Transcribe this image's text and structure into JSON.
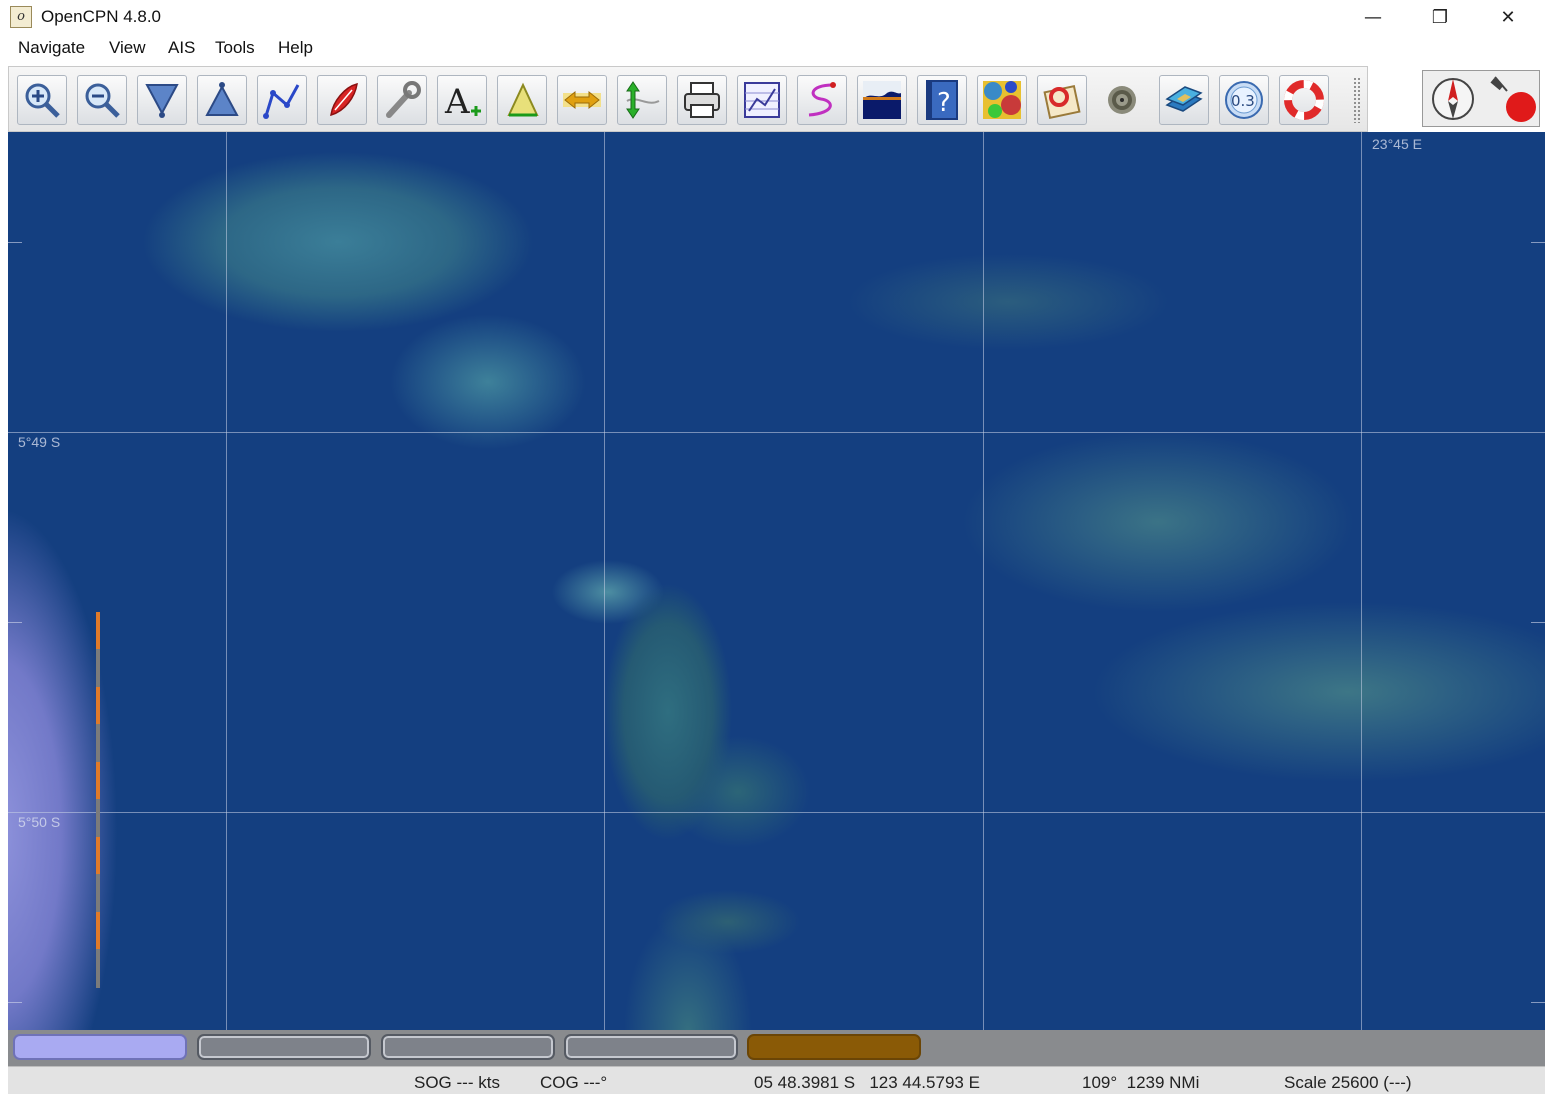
{
  "window": {
    "title": "OpenCPN 4.8.0",
    "app_icon_glyph": "o",
    "controls": {
      "minimize": "—",
      "restore": "❐",
      "close": "✕"
    }
  },
  "menu": {
    "items": [
      "Navigate",
      "View",
      "AIS",
      "Tools",
      "Help"
    ]
  },
  "toolbar": {
    "buttons": [
      {
        "icon": "zoom-in-icon"
      },
      {
        "icon": "zoom-out-icon"
      },
      {
        "icon": "scale-down-icon"
      },
      {
        "icon": "scale-up-icon"
      },
      {
        "icon": "route-icon"
      },
      {
        "icon": "boat-follow-icon"
      },
      {
        "icon": "settings-icon"
      },
      {
        "icon": "text-icon"
      },
      {
        "icon": "measure-icon"
      },
      {
        "icon": "tide-icon"
      },
      {
        "icon": "current-icon"
      },
      {
        "icon": "print-icon"
      },
      {
        "icon": "route-manager-icon"
      },
      {
        "icon": "track-icon"
      },
      {
        "icon": "color-scheme-icon"
      },
      {
        "icon": "help-icon"
      },
      {
        "icon": "grib-icon"
      },
      {
        "icon": "logbook-icon"
      },
      {
        "icon": "radar-icon"
      },
      {
        "icon": "chart-dl-icon"
      },
      {
        "icon": "dashboard-icon"
      },
      {
        "icon": "mob-icon"
      }
    ],
    "dashboard_label": "0.3"
  },
  "chart": {
    "lat_labels": [
      "5°49 S",
      "5°50 S"
    ],
    "lon_label": "23°45 E"
  },
  "piano": {
    "keys": [
      {
        "state": "active"
      },
      {
        "state": "inactive"
      },
      {
        "state": "inactive"
      },
      {
        "state": "inactive"
      },
      {
        "state": "raster"
      }
    ],
    "colors": {
      "active": "#a9aaf2",
      "raster": "#8a5a06",
      "inactive": "#7e828a"
    }
  },
  "status": {
    "sog": "SOG --- kts",
    "cog": "COG ---°",
    "position": "05 48.3981 S   123 44.5793 E",
    "bearing_distance": "109°  1239 NMi",
    "scale": "Scale 25600 (---)"
  }
}
